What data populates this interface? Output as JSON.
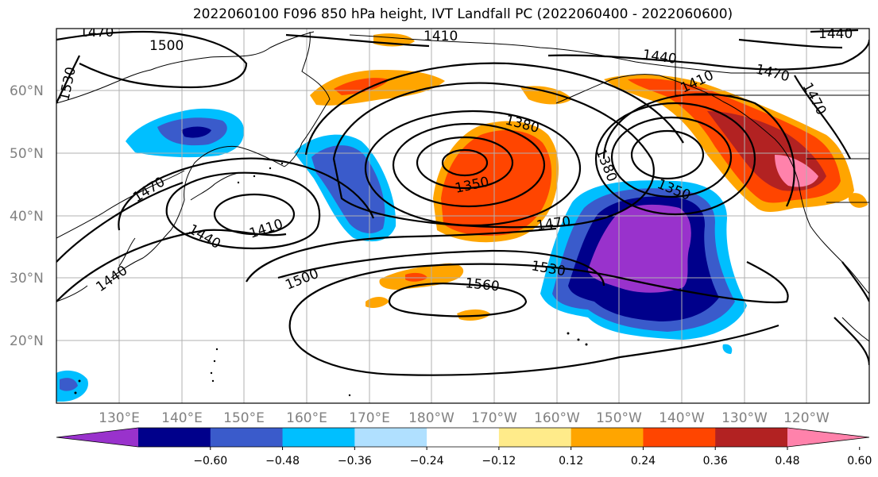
{
  "title": "2022060100 F096 850 hPa height, IVT Landfall PC (2022060400 - 2022060600)",
  "map": {
    "lat_labels": [
      "60°N",
      "50°N",
      "40°N",
      "30°N",
      "20°N"
    ],
    "lon_labels": [
      "130°E",
      "140°E",
      "150°E",
      "160°E",
      "170°E",
      "180°W",
      "170°W",
      "160°W",
      "150°W",
      "140°W",
      "130°W",
      "120°W"
    ],
    "contour_labels": [
      {
        "id": "c1470a",
        "text": "1470"
      },
      {
        "id": "c1500a",
        "text": "1500"
      },
      {
        "id": "c1410a",
        "text": "1410"
      },
      {
        "id": "c1440a",
        "text": "1440"
      },
      {
        "id": "c1440top",
        "text": "1440"
      },
      {
        "id": "c1470ne",
        "text": "1470"
      },
      {
        "id": "c1470ne2",
        "text": "1470"
      },
      {
        "id": "c1530w",
        "text": "1530"
      },
      {
        "id": "c1380",
        "text": "1380"
      },
      {
        "id": "c1410ak",
        "text": "1410"
      },
      {
        "id": "c1380b",
        "text": "1380"
      },
      {
        "id": "c1350a",
        "text": "1350"
      },
      {
        "id": "c1350b",
        "text": "1350"
      },
      {
        "id": "c1470jp",
        "text": "1470"
      },
      {
        "id": "c1440jp",
        "text": "1440"
      },
      {
        "id": "c1410jp",
        "text": "1410"
      },
      {
        "id": "c1470m",
        "text": "1470"
      },
      {
        "id": "c1500m",
        "text": "1500"
      },
      {
        "id": "c1530m",
        "text": "1530"
      },
      {
        "id": "c1560",
        "text": "1560"
      },
      {
        "id": "c1440sw",
        "text": "1440"
      }
    ],
    "colors": {
      "neg_060": "#9932CC",
      "neg_048": "#00008B",
      "neg_036": "#3A5BCB",
      "neg_024": "#00BFFF",
      "neg_012": "#B0E0FF",
      "pos_012": "#FFEB8A",
      "pos_024": "#FFA500",
      "pos_036": "#FF4500",
      "pos_048": "#B22222",
      "pos_060": "#FF82AB"
    }
  },
  "colorbar": {
    "ticks": [
      "−0.60",
      "−0.48",
      "−0.36",
      "−0.24",
      "−0.12",
      "0.12",
      "0.24",
      "0.36",
      "0.48",
      "0.60"
    ],
    "colors": [
      "#9932CC",
      "#00008B",
      "#3A5BCB",
      "#00BFFF",
      "#B0E0FF",
      "#FFFFFF",
      "#FFEB8A",
      "#FFA500",
      "#FF4500",
      "#B22222",
      "#FF82AB"
    ]
  }
}
